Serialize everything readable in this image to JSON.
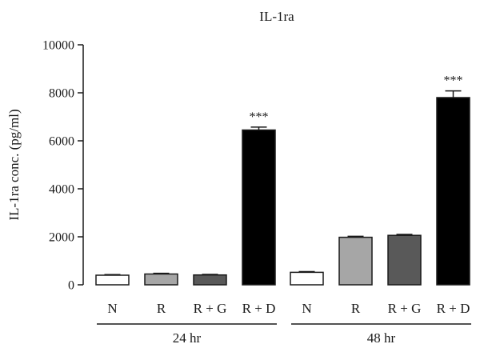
{
  "chart_data": {
    "type": "bar",
    "title": "IL-1ra",
    "xlabel": "",
    "ylabel": "IL-1ra conc. (pg/ml)",
    "ylim": [
      0,
      10000
    ],
    "yticks": [
      0,
      2000,
      4000,
      6000,
      8000,
      10000
    ],
    "grid": false,
    "groups": [
      {
        "label": "24 hr",
        "bars": [
          {
            "category": "N",
            "value": 400,
            "error": 25,
            "color": "#ffffff",
            "annotation": ""
          },
          {
            "category": "R",
            "value": 450,
            "error": 30,
            "color": "#a6a6a6",
            "annotation": ""
          },
          {
            "category": "R + G",
            "value": 410,
            "error": 25,
            "color": "#595959",
            "annotation": ""
          },
          {
            "category": "R + D",
            "value": 6450,
            "error": 120,
            "color": "#000000",
            "annotation": "***"
          }
        ]
      },
      {
        "label": "48 hr",
        "bars": [
          {
            "category": "N",
            "value": 520,
            "error": 30,
            "color": "#ffffff",
            "annotation": ""
          },
          {
            "category": "R",
            "value": 1980,
            "error": 40,
            "color": "#a6a6a6",
            "annotation": ""
          },
          {
            "category": "R + G",
            "value": 2060,
            "error": 40,
            "color": "#595959",
            "annotation": ""
          },
          {
            "category": "R + D",
            "value": 7800,
            "error": 280,
            "color": "#000000",
            "annotation": "***"
          }
        ]
      }
    ]
  }
}
